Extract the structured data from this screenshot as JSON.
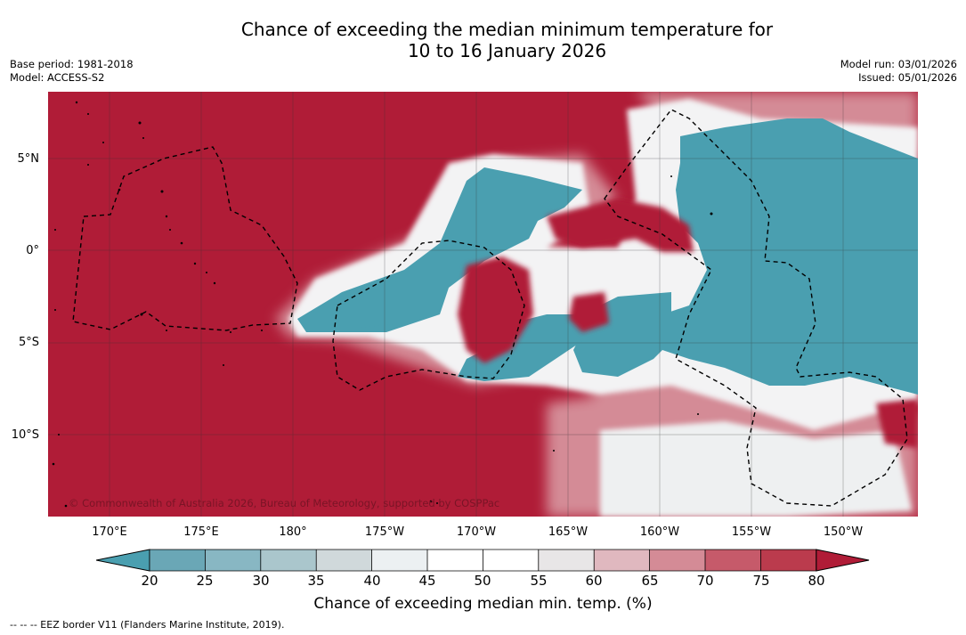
{
  "title": {
    "line1": "Chance of exceeding the median minimum temperature for",
    "line2": "10 to 16 January 2026"
  },
  "meta": {
    "base_period": "Base period: 1981-2018",
    "model": "Model: ACCESS-S2",
    "model_run": "Model run: 03/01/2026",
    "issued": "Issued: 05/01/2026"
  },
  "map": {
    "copyright": "© Commonwealth of Australia 2026, Bureau of Meteorology, supported by COSPPac",
    "latitude_labels": [
      "5°N",
      "0°",
      "5°S",
      "10°S"
    ],
    "longitude_labels": [
      "170°E",
      "175°E",
      "180°",
      "175°W",
      "170°W",
      "165°W",
      "160°W",
      "155°W",
      "150°W"
    ]
  },
  "colorbar": {
    "tick_labels": [
      "20",
      "25",
      "30",
      "35",
      "40",
      "45",
      "50",
      "55",
      "60",
      "65",
      "70",
      "75",
      "80"
    ],
    "label": "Chance of exceeding median min. temp. (%)",
    "colors": {
      "below_20": "#4a9fb0",
      "20_25": "#6aa7b6",
      "25_30": "#88b7c3",
      "30_35": "#aac6cc",
      "35_40": "#d0d9db",
      "40_45": "#ecf0f2",
      "45_50": "#ffffff",
      "50_55": "#ffffff",
      "55_60": "#e8e6e7",
      "60_65": "#e0b8bf",
      "65_70": "#d48b96",
      "70_75": "#c65a6a",
      "75_80": "#bb3b4d",
      "above_80": "#b01c37"
    }
  },
  "footnote": "-- -- -- EEZ border V11 (Flanders Marine Institute, 2019)."
}
